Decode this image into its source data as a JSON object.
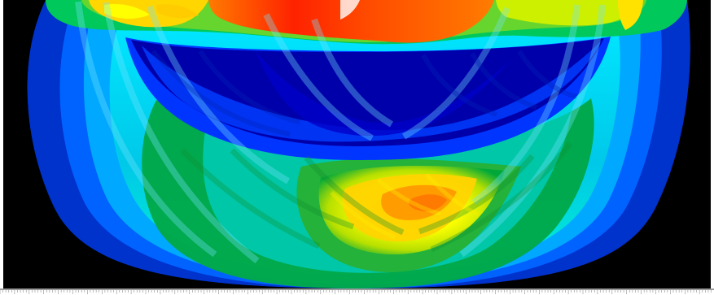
{
  "colors": {
    "background": "#000000",
    "deep_blue": "#0000aa",
    "blue": "#0045ff",
    "light_blue": "#00a5ff",
    "cyan": "#00f0ff",
    "aqua": "#00f0d0",
    "green": "#009a2a",
    "light_green": "#5ad02d",
    "yellow": "#ffff00",
    "orange": "#ff9900",
    "red": "#ff2200",
    "ruler_line": "#8f8f8f"
  },
  "figure": {
    "kind": "contour-field",
    "palette": [
      "deep_blue",
      "blue",
      "light_blue",
      "cyan",
      "aqua",
      "green",
      "light_green",
      "yellow",
      "orange",
      "red"
    ]
  }
}
